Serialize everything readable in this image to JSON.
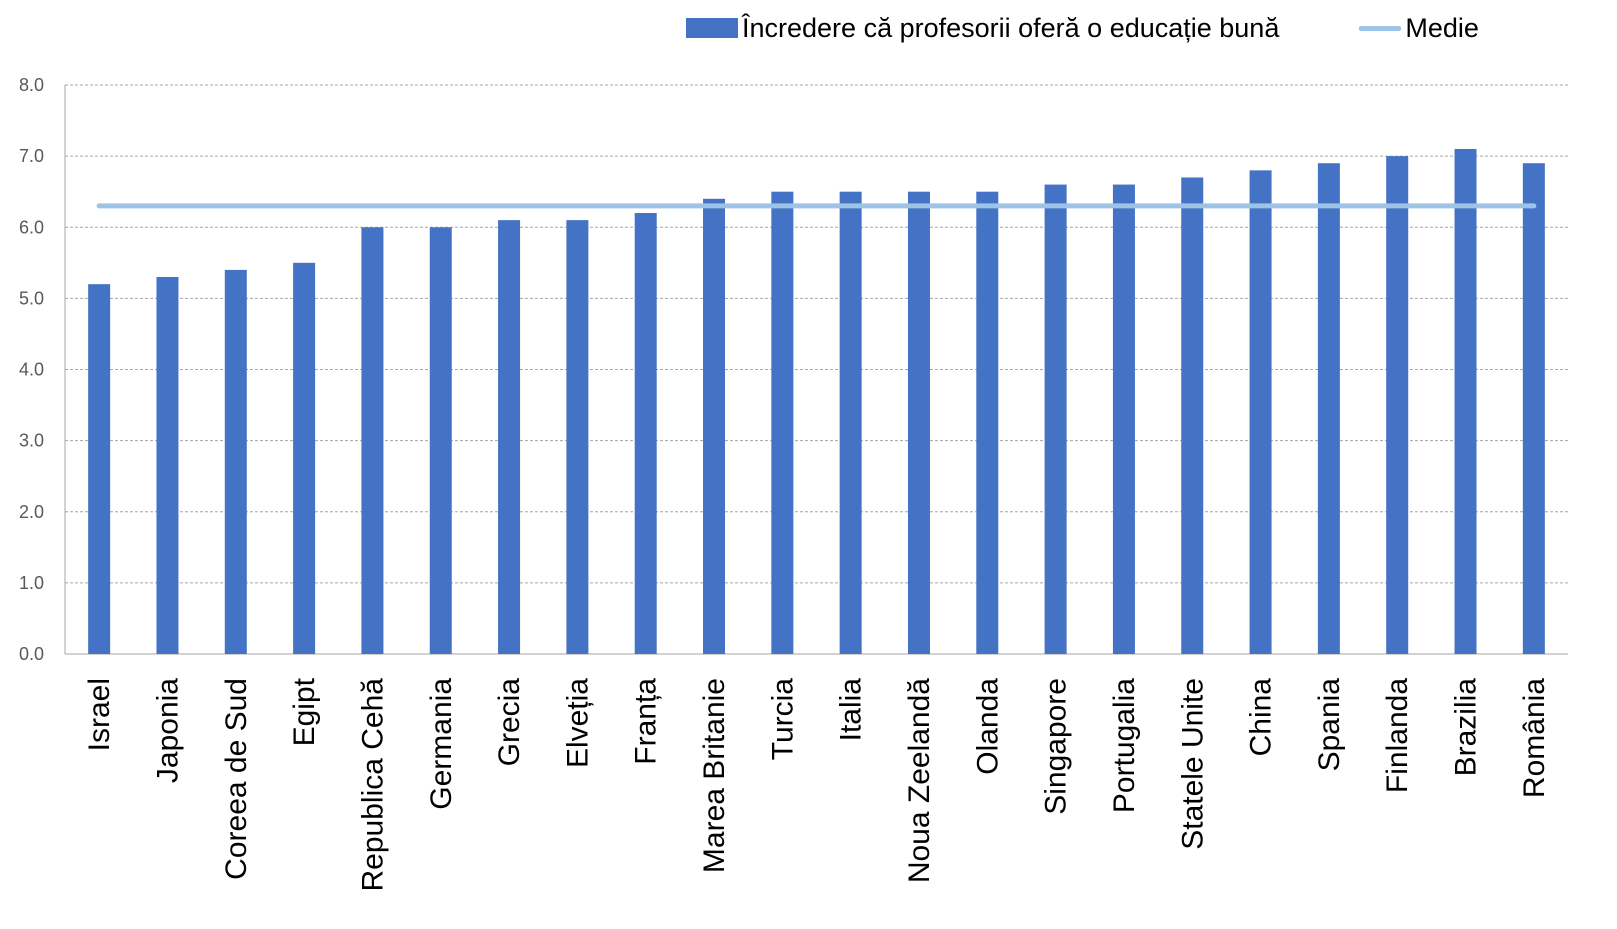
{
  "chart_data": {
    "type": "bar",
    "title": "",
    "xlabel": "",
    "ylabel": "",
    "ylim": [
      0,
      8
    ],
    "yticks": [
      0,
      1,
      2,
      3,
      4,
      5,
      6,
      7,
      8
    ],
    "ytick_labels": [
      "0.0",
      "1.0",
      "2.0",
      "3.0",
      "4.0",
      "5.0",
      "6.0",
      "7.0",
      "8.0"
    ],
    "grid": true,
    "legend_position": "top-right",
    "categories": [
      "Israel",
      "Japonia",
      "Coreea de Sud",
      "Egipt",
      "Republica Cehă",
      "Germania",
      "Grecia",
      "Elveția",
      "Franța",
      "Marea Britanie",
      "Turcia",
      "Italia",
      "Noua Zeelandă",
      "Olanda",
      "Singapore",
      "Portugalia",
      "Statele Unite",
      "China",
      "Spania",
      "Finlanda",
      "Brazilia",
      "România"
    ],
    "series": [
      {
        "name": "Încredere că profesorii oferă o educație bună",
        "type": "bar",
        "color": "#4472C4",
        "values": [
          5.2,
          5.3,
          5.4,
          5.5,
          6.0,
          6.0,
          6.1,
          6.1,
          6.2,
          6.4,
          6.5,
          6.5,
          6.5,
          6.5,
          6.6,
          6.6,
          6.7,
          6.8,
          6.9,
          7.0,
          7.1,
          6.9
        ]
      },
      {
        "name": "Medie",
        "type": "line",
        "color": "#9DC3E6",
        "values": [
          6.3,
          6.3,
          6.3,
          6.3,
          6.3,
          6.3,
          6.3,
          6.3,
          6.3,
          6.3,
          6.3,
          6.3,
          6.3,
          6.3,
          6.3,
          6.3,
          6.3,
          6.3,
          6.3,
          6.3,
          6.3,
          6.3
        ]
      }
    ]
  }
}
